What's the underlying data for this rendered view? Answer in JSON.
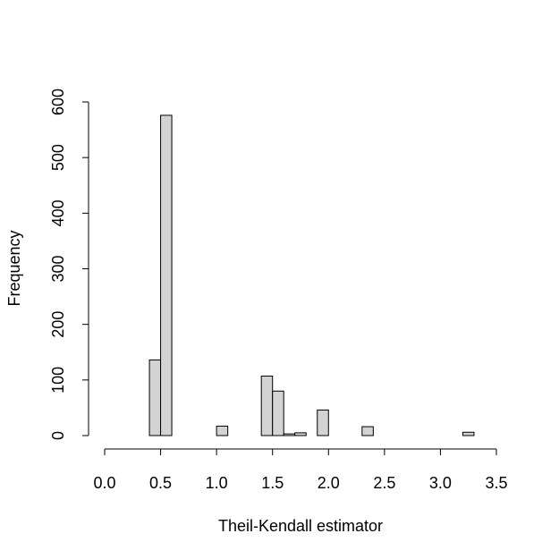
{
  "chart_data": {
    "type": "bar",
    "title": "",
    "xlabel": "Theil-Kendall estimator",
    "ylabel": "Frequency",
    "xlim": [
      0,
      3.5
    ],
    "ylim": [
      0,
      600
    ],
    "x_ticks": [
      "0.0",
      "0.5",
      "1.0",
      "1.5",
      "2.0",
      "2.5",
      "3.0",
      "3.5"
    ],
    "y_ticks": [
      "0",
      "100",
      "200",
      "300",
      "400",
      "500",
      "600"
    ],
    "bin_width": 0.1,
    "bins": [
      {
        "x0": 0.3,
        "x1": 0.4,
        "count": 0
      },
      {
        "x0": 0.4,
        "x1": 0.5,
        "count": 136
      },
      {
        "x0": 0.5,
        "x1": 0.6,
        "count": 576
      },
      {
        "x0": 0.6,
        "x1": 0.7,
        "count": 0
      },
      {
        "x0": 0.7,
        "x1": 0.8,
        "count": 0
      },
      {
        "x0": 0.8,
        "x1": 0.9,
        "count": 0
      },
      {
        "x0": 0.9,
        "x1": 1.0,
        "count": 0
      },
      {
        "x0": 1.0,
        "x1": 1.1,
        "count": 17
      },
      {
        "x0": 1.1,
        "x1": 1.2,
        "count": 0
      },
      {
        "x0": 1.2,
        "x1": 1.3,
        "count": 0
      },
      {
        "x0": 1.3,
        "x1": 1.4,
        "count": 0
      },
      {
        "x0": 1.4,
        "x1": 1.5,
        "count": 107
      },
      {
        "x0": 1.5,
        "x1": 1.6,
        "count": 80
      },
      {
        "x0": 1.6,
        "x1": 1.7,
        "count": 3
      },
      {
        "x0": 1.7,
        "x1": 1.8,
        "count": 5
      },
      {
        "x0": 1.8,
        "x1": 1.9,
        "count": 0
      },
      {
        "x0": 1.9,
        "x1": 2.0,
        "count": 46
      },
      {
        "x0": 2.0,
        "x1": 2.1,
        "count": 0
      },
      {
        "x0": 2.1,
        "x1": 2.2,
        "count": 0
      },
      {
        "x0": 2.2,
        "x1": 2.3,
        "count": 0
      },
      {
        "x0": 2.3,
        "x1": 2.4,
        "count": 16
      },
      {
        "x0": 2.4,
        "x1": 2.5,
        "count": 0
      },
      {
        "x0": 2.5,
        "x1": 2.6,
        "count": 0
      },
      {
        "x0": 2.6,
        "x1": 2.7,
        "count": 0
      },
      {
        "x0": 2.7,
        "x1": 2.8,
        "count": 0
      },
      {
        "x0": 2.8,
        "x1": 2.9,
        "count": 0
      },
      {
        "x0": 2.9,
        "x1": 3.0,
        "count": 0
      },
      {
        "x0": 3.0,
        "x1": 3.1,
        "count": 0
      },
      {
        "x0": 3.1,
        "x1": 3.2,
        "count": 0
      },
      {
        "x0": 3.2,
        "x1": 3.3,
        "count": 6
      }
    ],
    "grid": false,
    "colors": {
      "bar_fill": "#d3d3d3",
      "bar_stroke": "#000000",
      "axis": "#000000"
    }
  }
}
